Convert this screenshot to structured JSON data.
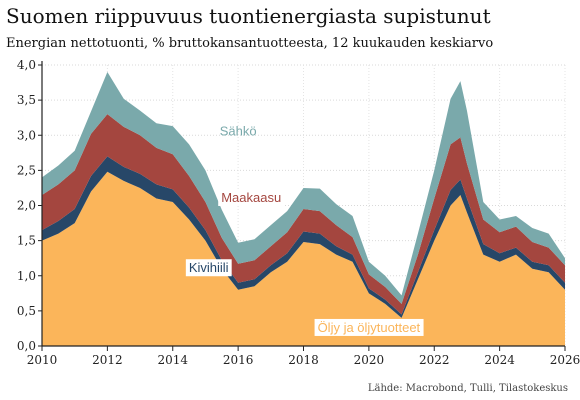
{
  "title": "Suomen riippuvuus tuontienergiasta supistunut",
  "subtitle": "Energian nettotuonti, % bruttokansantuotteesta, 12 kuukauden keskiarvo",
  "source": "Lähde: Macrobond, Tulli, Tilastokeskus",
  "chart_data": {
    "type": "area",
    "stacked": true,
    "xlim": [
      2010,
      2026
    ],
    "ylim": [
      0,
      4
    ],
    "x_ticks": [
      2010,
      2012,
      2014,
      2016,
      2018,
      2020,
      2022,
      2024,
      2026
    ],
    "y_ticks": [
      "0,0",
      "0,5",
      "1,0",
      "1,5",
      "2,0",
      "2,5",
      "3,0",
      "3,5",
      "4,0"
    ],
    "grid": true,
    "x": [
      2010,
      2010.5,
      2011,
      2011.5,
      2012,
      2012.5,
      2013,
      2013.5,
      2014,
      2014.5,
      2015,
      2015.5,
      2016,
      2016.5,
      2017,
      2017.5,
      2018,
      2018.5,
      2019,
      2019.5,
      2020,
      2020.5,
      2021,
      2021.5,
      2022,
      2022.5,
      2022.8,
      2023,
      2023.5,
      2024,
      2024.5,
      2025,
      2025.5,
      2026
    ],
    "series": [
      {
        "name": "Öljy ja öljytuotteet",
        "color": "#fbb55a",
        "values": [
          1.5,
          1.6,
          1.75,
          2.2,
          2.48,
          2.35,
          2.25,
          2.1,
          2.05,
          1.8,
          1.5,
          1.1,
          0.8,
          0.85,
          1.05,
          1.2,
          1.48,
          1.45,
          1.3,
          1.2,
          0.75,
          0.6,
          0.4,
          0.95,
          1.5,
          2.0,
          2.15,
          1.9,
          1.3,
          1.2,
          1.3,
          1.1,
          1.05,
          0.8
        ]
      },
      {
        "name": "Kivihiili",
        "color": "#274768",
        "values": [
          0.15,
          0.18,
          0.2,
          0.22,
          0.22,
          0.2,
          0.2,
          0.2,
          0.18,
          0.17,
          0.15,
          0.12,
          0.1,
          0.1,
          0.1,
          0.12,
          0.15,
          0.15,
          0.12,
          0.1,
          0.07,
          0.06,
          0.05,
          0.1,
          0.15,
          0.22,
          0.22,
          0.2,
          0.15,
          0.12,
          0.1,
          0.1,
          0.1,
          0.1
        ]
      },
      {
        "name": "Maakaasu",
        "color": "#a4463f",
        "values": [
          0.5,
          0.52,
          0.55,
          0.6,
          0.6,
          0.57,
          0.55,
          0.52,
          0.5,
          0.45,
          0.4,
          0.32,
          0.27,
          0.27,
          0.27,
          0.3,
          0.32,
          0.32,
          0.3,
          0.25,
          0.2,
          0.18,
          0.15,
          0.25,
          0.45,
          0.65,
          0.6,
          0.5,
          0.35,
          0.3,
          0.3,
          0.28,
          0.25,
          0.25
        ]
      },
      {
        "name": "Sähkö",
        "color": "#7aa9ab",
        "values": [
          0.25,
          0.27,
          0.28,
          0.32,
          0.6,
          0.4,
          0.35,
          0.35,
          0.4,
          0.45,
          0.45,
          0.4,
          0.3,
          0.3,
          0.3,
          0.3,
          0.3,
          0.32,
          0.3,
          0.3,
          0.18,
          0.16,
          0.12,
          0.3,
          0.4,
          0.65,
          0.8,
          0.75,
          0.25,
          0.18,
          0.15,
          0.2,
          0.2,
          0.1
        ]
      }
    ]
  }
}
